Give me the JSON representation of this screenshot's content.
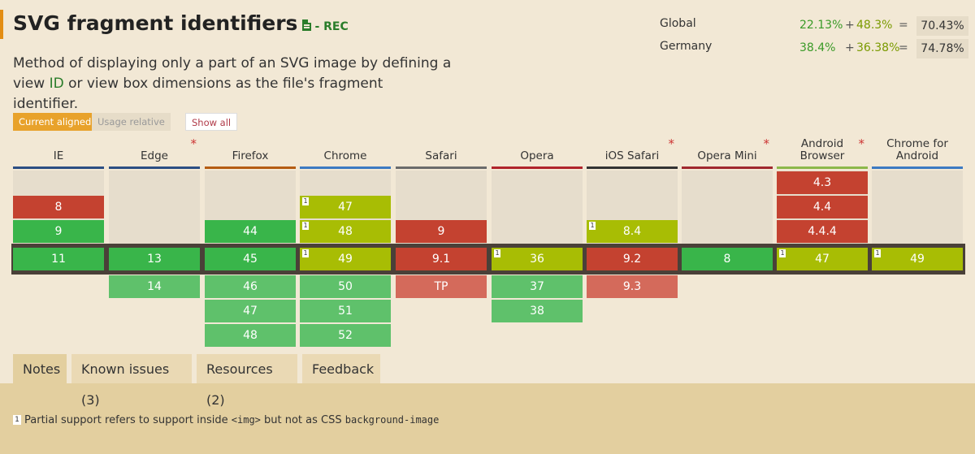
{
  "header": {
    "title": "SVG fragment identifiers",
    "status": "- REC",
    "description_before": "Method of displaying only a part of an SVG image by defining a view ",
    "description_link": "ID",
    "description_after": " or view box dimensions as the file's fragment identifier."
  },
  "stats": {
    "global": {
      "label": "Global",
      "full": "22.13%",
      "plus": "+",
      "partial": "48.3%",
      "eq": "=",
      "total": "70.43%"
    },
    "germany": {
      "label": "Germany",
      "full": "38.4%",
      "plus": "+",
      "partial": "36.38%",
      "eq": "=",
      "total": "74.78%"
    }
  },
  "controls": {
    "current_aligned": "Current aligned",
    "usage_relative": "Usage relative",
    "show_all": "Show all"
  },
  "browsers": [
    {
      "name": "IE",
      "asterisk": "",
      "bar": "#2c4e83"
    },
    {
      "name": "Edge",
      "asterisk": "*",
      "bar": "#2c4e83"
    },
    {
      "name": "Firefox",
      "asterisk": "",
      "bar": "#b55c12"
    },
    {
      "name": "Chrome",
      "asterisk": "",
      "bar": "#3d7ac2"
    },
    {
      "name": "Safari",
      "asterisk": "",
      "bar": "#6b6b6b"
    },
    {
      "name": "Opera",
      "asterisk": "",
      "bar": "#b0242b"
    },
    {
      "name": "iOS Safari",
      "asterisk": "*",
      "bar": "#333333"
    },
    {
      "name": "Opera Mini",
      "asterisk": "*",
      "bar": "#a0282e"
    },
    {
      "name": "Android Browser",
      "asterisk": "*",
      "bar": "#8db84a"
    },
    {
      "name": "Chrome for Android",
      "asterisk": "",
      "bar": "#3d7ac2"
    }
  ],
  "support": {
    "ie": {
      "past": [
        {
          "v": "8",
          "s": "n"
        },
        {
          "v": "9",
          "s": "y"
        }
      ],
      "current": {
        "v": "11",
        "s": "y"
      },
      "future": []
    },
    "edge": {
      "past": [],
      "current": {
        "v": "13",
        "s": "y"
      },
      "future": [
        {
          "v": "14",
          "s": "y-f"
        }
      ]
    },
    "firefox": {
      "past": [
        {
          "v": "44",
          "s": "y"
        }
      ],
      "current": {
        "v": "45",
        "s": "y"
      },
      "future": [
        {
          "v": "46",
          "s": "y-f"
        },
        {
          "v": "47",
          "s": "y-f"
        },
        {
          "v": "48",
          "s": "y-f"
        }
      ]
    },
    "chrome": {
      "past": [
        {
          "v": "47",
          "s": "a",
          "note": "1"
        },
        {
          "v": "48",
          "s": "a",
          "note": "1"
        }
      ],
      "current": {
        "v": "49",
        "s": "a",
        "note": "1"
      },
      "future": [
        {
          "v": "50",
          "s": "y-f"
        },
        {
          "v": "51",
          "s": "y-f"
        },
        {
          "v": "52",
          "s": "y-f"
        }
      ]
    },
    "safari": {
      "past": [
        {
          "v": "9",
          "s": "n"
        }
      ],
      "current": {
        "v": "9.1",
        "s": "n"
      },
      "future": [
        {
          "v": "TP",
          "s": "n-f"
        }
      ]
    },
    "opera": {
      "past": [],
      "current": {
        "v": "36",
        "s": "a",
        "note": "1"
      },
      "future": [
        {
          "v": "37",
          "s": "y-f"
        },
        {
          "v": "38",
          "s": "y-f"
        }
      ]
    },
    "ios": {
      "past": [
        {
          "v": "8.4",
          "s": "a",
          "note": "1"
        }
      ],
      "current": {
        "v": "9.2",
        "s": "n"
      },
      "future": [
        {
          "v": "9.3",
          "s": "n-f"
        }
      ]
    },
    "operamini": {
      "past": [],
      "current": {
        "v": "8",
        "s": "y"
      },
      "future": []
    },
    "android": {
      "past": [
        {
          "v": "4.3",
          "s": "n"
        },
        {
          "v": "4.4",
          "s": "n"
        },
        {
          "v": "4.4.4",
          "s": "n"
        }
      ],
      "current": {
        "v": "47",
        "s": "a",
        "note": "1"
      },
      "future": []
    },
    "chromeandroid": {
      "past": [],
      "current": {
        "v": "49",
        "s": "a",
        "note": "1"
      },
      "future": []
    }
  },
  "tabs": [
    {
      "label": "Notes",
      "active": true
    },
    {
      "label": "Known issues (3)",
      "active": false
    },
    {
      "label": "Resources (2)",
      "active": false
    },
    {
      "label": "Feedback",
      "active": false
    }
  ],
  "notes": {
    "marker": "1",
    "text_before": "Partial support refers to support inside ",
    "code1": "<img>",
    "text_middle": " but not as CSS ",
    "code2": "background-image"
  }
}
